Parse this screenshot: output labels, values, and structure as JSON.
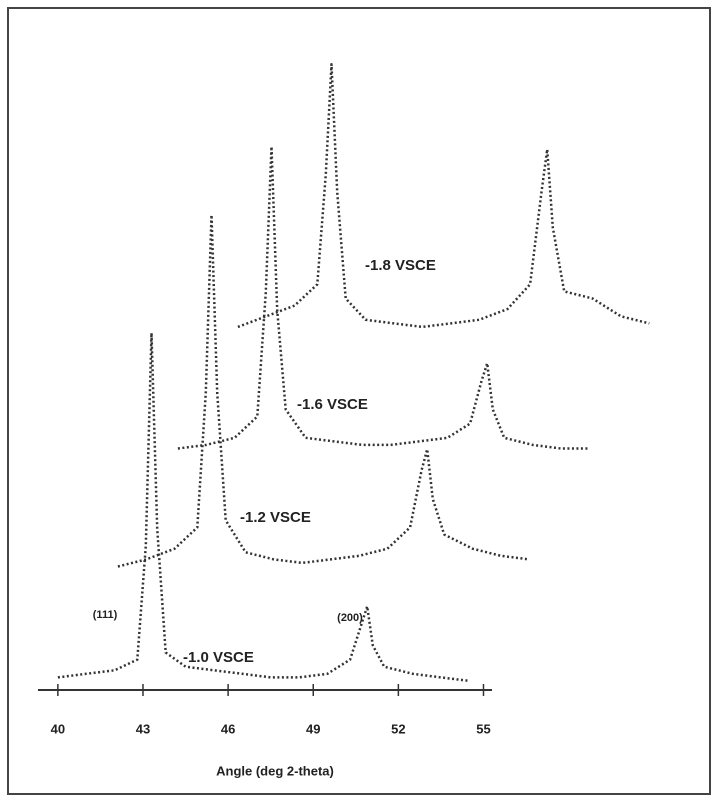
{
  "chart_data": {
    "type": "line",
    "xlabel": "Angle (deg 2-theta)",
    "x": [
      40,
      41,
      42,
      42.8,
      43.1,
      43.3,
      43.5,
      43.8,
      44.5,
      45.5,
      46.5,
      47.5,
      48.5,
      49.5,
      50.3,
      50.7,
      50.9,
      51.1,
      51.5,
      52.5,
      53.5,
      54.5
    ],
    "series": [
      {
        "name": "-1.0 VSCE",
        "color": "#333333",
        "values": [
          3,
          4,
          5,
          8,
          40,
          100,
          45,
          10,
          6,
          5,
          4,
          3,
          3,
          4,
          8,
          18,
          23,
          12,
          6,
          4,
          3,
          2
        ]
      },
      {
        "name": "-1.2 VSCE",
        "color": "#333333",
        "values": [
          1,
          3,
          6,
          12,
          50,
          100,
          50,
          14,
          5,
          3,
          2,
          3,
          4,
          6,
          12,
          28,
          34,
          20,
          10,
          6,
          4,
          3
        ]
      },
      {
        "name": "-1.6 VSCE",
        "color": "#333333",
        "values": [
          1,
          2,
          4,
          10,
          45,
          86,
          40,
          12,
          4,
          3,
          2,
          2,
          3,
          4,
          8,
          20,
          25,
          12,
          4,
          2,
          1,
          1
        ]
      },
      {
        "name": "-1.8 VSCE",
        "color": "#333333",
        "values": [
          2,
          5,
          8,
          14,
          45,
          76,
          40,
          10,
          4,
          3,
          2,
          3,
          4,
          7,
          14,
          40,
          52,
          30,
          12,
          10,
          5,
          3
        ]
      }
    ],
    "annotations": [
      "(111)",
      "(200)"
    ],
    "xlim": [
      39.3,
      55.3
    ],
    "xticks": [
      40,
      43,
      46,
      49,
      52,
      55
    ],
    "ylim": [
      0,
      100
    ]
  }
}
